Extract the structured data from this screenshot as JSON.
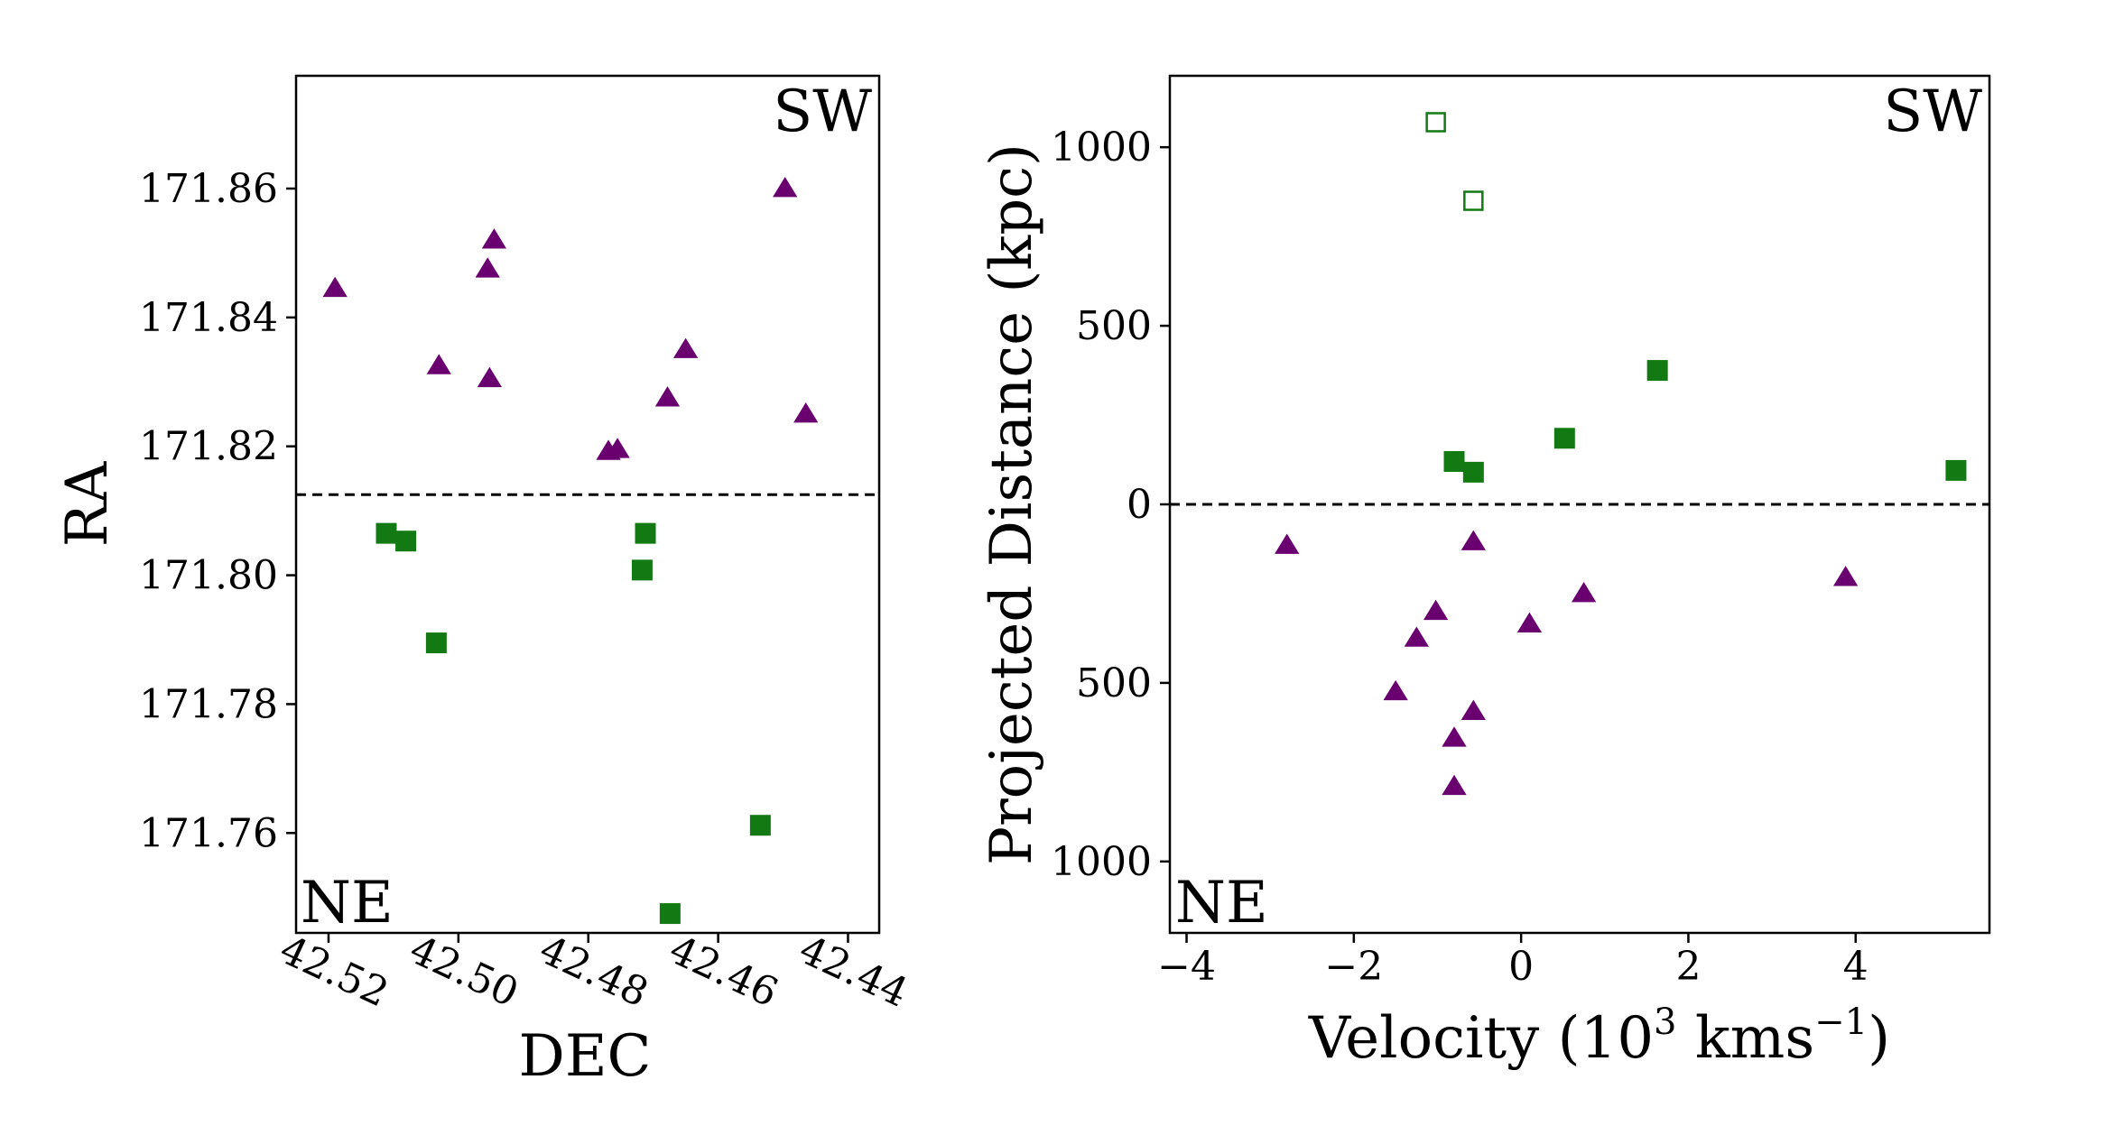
{
  "colors": {
    "triangle": "#6a0070",
    "square": "#137a13",
    "open_square": "#137a13",
    "divider": "#000000"
  },
  "chart_data": [
    {
      "type": "scatter",
      "xlabel": "DEC",
      "ylabel": "RA",
      "xlim": [
        42.525,
        42.4352
      ],
      "ylim": [
        171.7445,
        171.8775
      ],
      "x_inverted": true,
      "xticks": [
        42.52,
        42.5,
        42.48,
        42.46,
        42.44
      ],
      "xtick_labels": [
        "42.52",
        "42.50",
        "42.48",
        "42.46",
        "42.44"
      ],
      "yticks": [
        171.76,
        171.78,
        171.8,
        171.82,
        171.84,
        171.86
      ],
      "ytick_labels": [
        "171.76",
        "171.78",
        "171.80",
        "171.82",
        "171.84",
        "171.86"
      ],
      "annotations": {
        "top_right": "SW",
        "bottom_left": "NE"
      },
      "divider_y": 171.8125,
      "grid": false,
      "series": [
        {
          "marker": "triangle",
          "points": [
            [
              42.519,
              171.8445
            ],
            [
              42.4945,
              171.852
            ],
            [
              42.4955,
              171.8475
            ],
            [
              42.503,
              171.8325
            ],
            [
              42.4952,
              171.8305
            ],
            [
              42.4755,
              171.8195
            ],
            [
              42.4769,
              171.8192
            ],
            [
              42.465,
              171.835
            ],
            [
              42.4678,
              171.8275
            ],
            [
              42.4497,
              171.86
            ],
            [
              42.4465,
              171.825
            ]
          ]
        },
        {
          "marker": "square",
          "points": [
            [
              42.5111,
              171.8065
            ],
            [
              42.5081,
              171.8053
            ],
            [
              42.5034,
              171.7895
            ],
            [
              42.4712,
              171.8065
            ],
            [
              42.4717,
              171.8008
            ],
            [
              42.4674,
              171.7475
            ],
            [
              42.4535,
              171.7612
            ]
          ]
        }
      ]
    },
    {
      "type": "scatter",
      "xlabel": "Velocity (10",
      "xlabel_sup1": "3",
      "xlabel_mid": " kms",
      "xlabel_sup2": "−1",
      "xlabel_end": ")",
      "ylabel": "Projected Distance (kpc)",
      "xlim": [
        -4.2,
        5.6
      ],
      "ylim": [
        1200,
        -1200
      ],
      "xticks": [
        -4,
        -2,
        0,
        2,
        4
      ],
      "xtick_labels": [
        "−4",
        "−2",
        "0",
        "2",
        "4"
      ],
      "yticks": [
        1000,
        500,
        0,
        -500,
        -1000
      ],
      "ytick_labels": [
        "1000",
        "500",
        "0",
        "500",
        "1000"
      ],
      "annotations": {
        "top_right": "SW",
        "bottom_left": "NE"
      },
      "divider_y": 0,
      "grid": false,
      "series": [
        {
          "marker": "triangle",
          "points": [
            [
              -0.8,
              790
            ],
            [
              -0.8,
              655
            ],
            [
              -0.57,
              580
            ],
            [
              -1.5,
              525
            ],
            [
              -1.25,
              375
            ],
            [
              -1.02,
              300
            ],
            [
              0.1,
              335
            ],
            [
              0.75,
              250
            ],
            [
              3.88,
              205
            ],
            [
              -2.8,
              115
            ],
            [
              -0.57,
              105
            ]
          ]
        },
        {
          "marker": "square",
          "points": [
            [
              -0.8,
              -120
            ],
            [
              -0.57,
              -90
            ],
            [
              0.52,
              -185
            ],
            [
              1.63,
              -375
            ],
            [
              5.2,
              -95
            ]
          ]
        },
        {
          "marker": "open_square",
          "points": [
            [
              -0.57,
              -850
            ],
            [
              -1.02,
              -1070
            ]
          ]
        }
      ]
    }
  ]
}
